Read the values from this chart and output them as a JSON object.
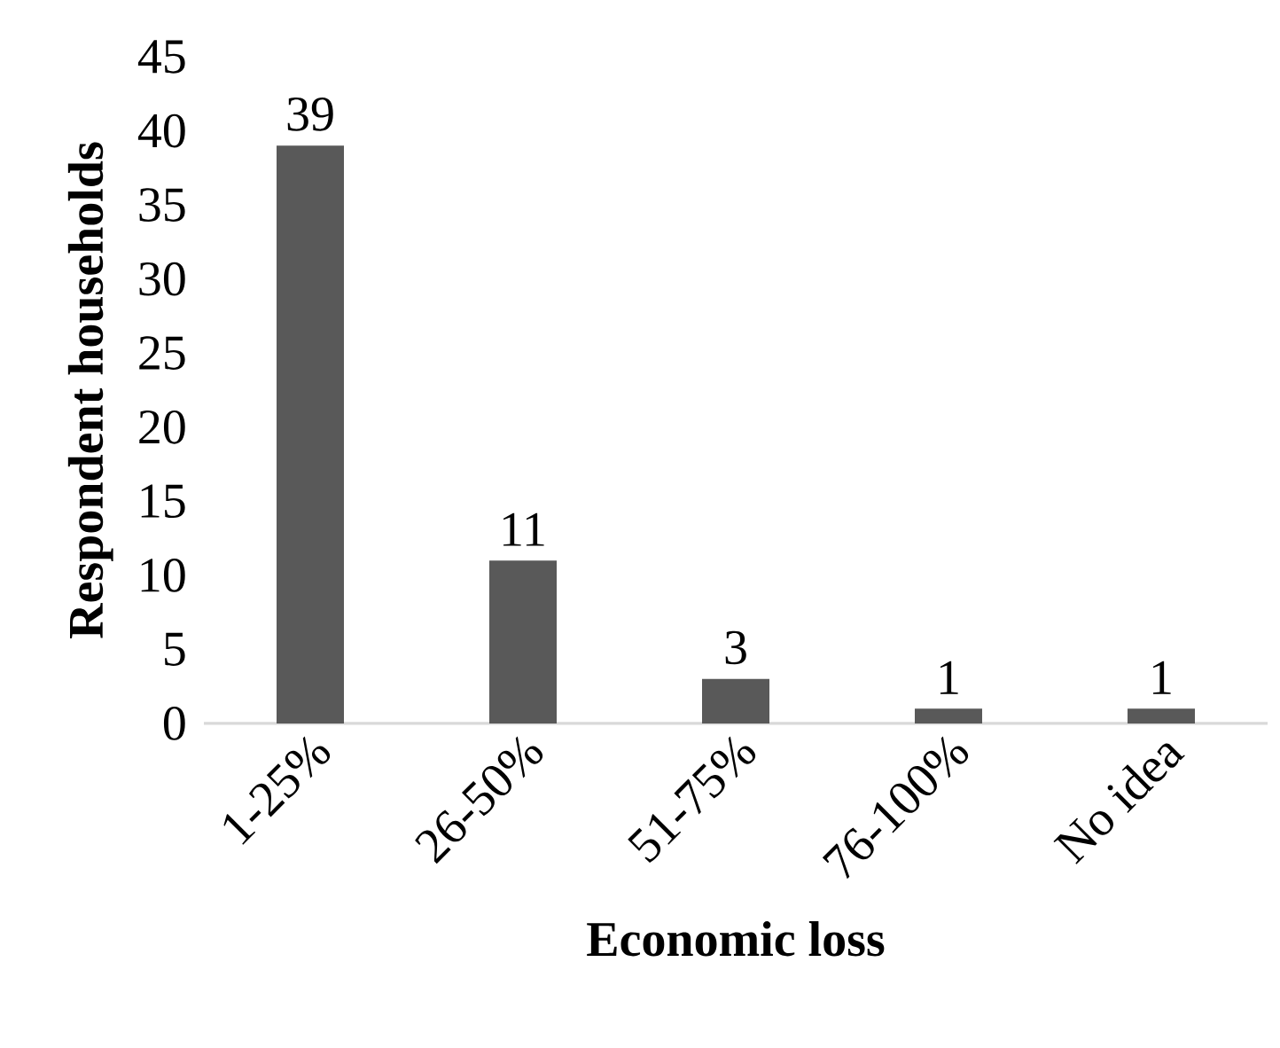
{
  "chart_data": {
    "type": "bar",
    "categories": [
      "1-25%",
      "26-50%",
      "51-75%",
      "76-100%",
      "No idea"
    ],
    "values": [
      39,
      11,
      3,
      1,
      1
    ],
    "color": "#595959",
    "xlabel": "Economic loss",
    "ylabel": "Respondent households",
    "ylim": [
      0,
      45
    ],
    "yticks": [
      0,
      5,
      10,
      15,
      20,
      25,
      30,
      35,
      40,
      45
    ],
    "data_labels": true
  }
}
